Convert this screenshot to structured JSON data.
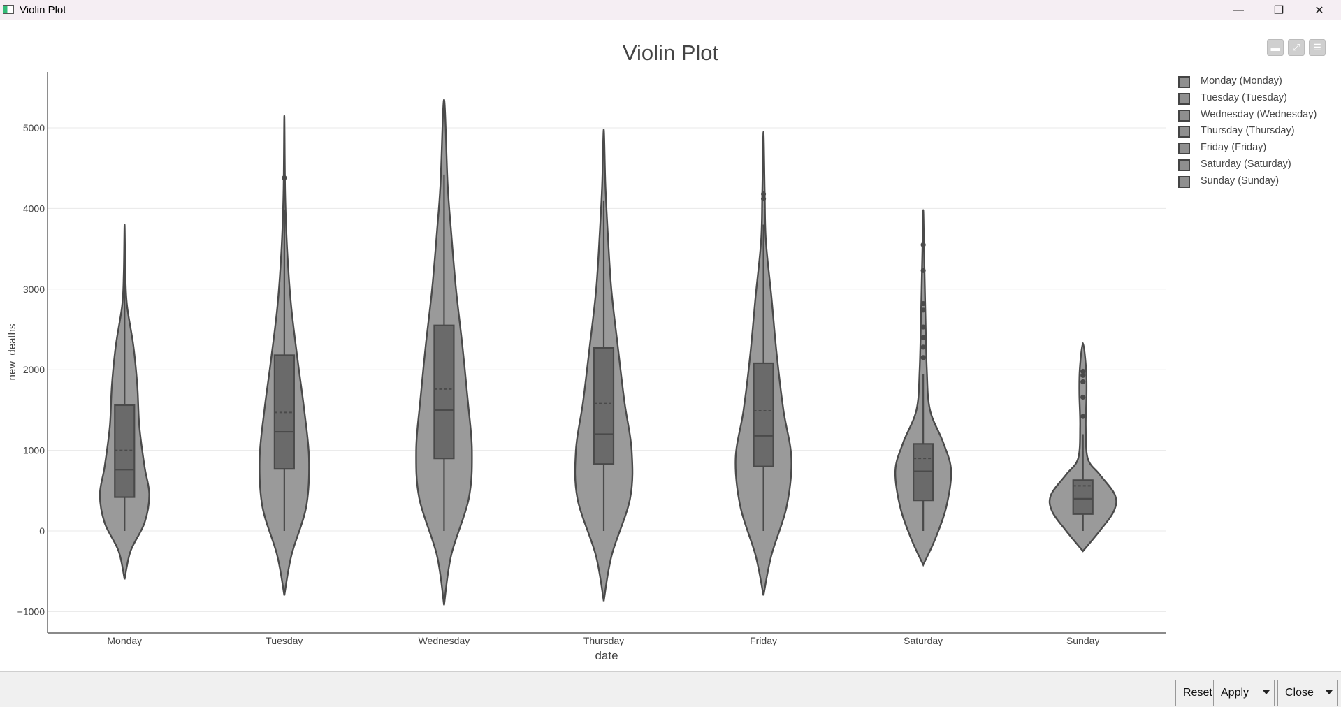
{
  "window": {
    "title": "Violin Plot",
    "icon": "app-chart-icon",
    "controls": [
      "minimize-icon",
      "restore-icon",
      "close-icon"
    ]
  },
  "toolbar": {
    "icons": [
      "collapse-icon",
      "fullscreen-icon",
      "menu-icon"
    ]
  },
  "buttons": {
    "reset": "Reset",
    "apply": "Apply",
    "close": "Close"
  },
  "legend": {
    "items": [
      "Monday (Monday)",
      "Tuesday (Tuesday)",
      "Wednesday (Wednesday)",
      "Thursday (Thursday)",
      "Friday (Friday)",
      "Saturday (Saturday)",
      "Sunday (Sunday)"
    ]
  },
  "colors": {
    "violin_fill": "#9a9a9a",
    "violin_stroke": "#4a4a4a",
    "box_fill": "#6a6a6a",
    "grid": "#e8e8e8"
  },
  "chart_data": {
    "type": "violin",
    "title": "Violin Plot",
    "xlabel": "date",
    "ylabel": "new_deaths",
    "ylim": [
      -1250,
      5700
    ],
    "yticks": [
      -1000,
      0,
      1000,
      2000,
      3000,
      4000,
      5000
    ],
    "ytick_labels": [
      "−1000",
      "0",
      "1000",
      "2000",
      "3000",
      "4000",
      "5000"
    ],
    "grid": true,
    "legend_position": "top-right",
    "categories": [
      "Monday",
      "Tuesday",
      "Wednesday",
      "Thursday",
      "Friday",
      "Saturday",
      "Sunday"
    ],
    "series": [
      {
        "name": "Monday",
        "kde_min": -600,
        "kde_max": 3800,
        "min": 0,
        "q1": 420,
        "median": 760,
        "mean": 1000,
        "q3": 1560,
        "upper_whisker": 3200,
        "outliers": [],
        "density": [
          [
            -600,
            0
          ],
          [
            -250,
            0.15
          ],
          [
            100,
            0.5
          ],
          [
            450,
            0.62
          ],
          [
            800,
            0.5
          ],
          [
            1300,
            0.37
          ],
          [
            1800,
            0.32
          ],
          [
            2300,
            0.22
          ],
          [
            2800,
            0.06
          ],
          [
            3200,
            0.02
          ],
          [
            3800,
            0
          ]
        ]
      },
      {
        "name": "Tuesday",
        "kde_min": -800,
        "kde_max": 5150,
        "min": 0,
        "q1": 770,
        "median": 1230,
        "mean": 1470,
        "q3": 2180,
        "upper_whisker": 3980,
        "outliers": [
          4380
        ],
        "density": [
          [
            -800,
            0
          ],
          [
            -300,
            0.18
          ],
          [
            300,
            0.55
          ],
          [
            900,
            0.62
          ],
          [
            1500,
            0.5
          ],
          [
            2100,
            0.34
          ],
          [
            2800,
            0.17
          ],
          [
            3500,
            0.07
          ],
          [
            4200,
            0.02
          ],
          [
            5150,
            0
          ]
        ]
      },
      {
        "name": "Wednesday",
        "kde_min": -920,
        "kde_max": 5350,
        "min": 0,
        "q1": 900,
        "median": 1500,
        "mean": 1760,
        "q3": 2550,
        "upper_whisker": 4420,
        "outliers": [],
        "density": [
          [
            -920,
            0
          ],
          [
            -300,
            0.18
          ],
          [
            400,
            0.62
          ],
          [
            1000,
            0.7
          ],
          [
            1600,
            0.6
          ],
          [
            2300,
            0.46
          ],
          [
            3000,
            0.3
          ],
          [
            3700,
            0.18
          ],
          [
            4300,
            0.09
          ],
          [
            5350,
            0
          ]
        ]
      },
      {
        "name": "Thursday",
        "kde_min": -870,
        "kde_max": 4980,
        "min": 0,
        "q1": 830,
        "median": 1200,
        "mean": 1580,
        "q3": 2270,
        "upper_whisker": 4100,
        "outliers": [],
        "density": [
          [
            -870,
            0
          ],
          [
            -300,
            0.2
          ],
          [
            400,
            0.66
          ],
          [
            1000,
            0.7
          ],
          [
            1600,
            0.52
          ],
          [
            2300,
            0.35
          ],
          [
            3000,
            0.19
          ],
          [
            3700,
            0.1
          ],
          [
            4300,
            0.04
          ],
          [
            4980,
            0
          ]
        ]
      },
      {
        "name": "Friday",
        "kde_min": -800,
        "kde_max": 4950,
        "min": 0,
        "q1": 800,
        "median": 1180,
        "mean": 1490,
        "q3": 2080,
        "upper_whisker": 3800,
        "outliers": [
          4120,
          4180
        ],
        "density": [
          [
            -800,
            0
          ],
          [
            -300,
            0.2
          ],
          [
            300,
            0.58
          ],
          [
            900,
            0.7
          ],
          [
            1500,
            0.5
          ],
          [
            2200,
            0.33
          ],
          [
            2900,
            0.2
          ],
          [
            3600,
            0.06
          ],
          [
            4200,
            0.03
          ],
          [
            4950,
            0
          ]
        ]
      },
      {
        "name": "Saturday",
        "kde_min": -420,
        "kde_max": 3980,
        "min": 0,
        "q1": 380,
        "median": 740,
        "mean": 900,
        "q3": 1080,
        "upper_whisker": 1950,
        "outliers": [
          2150,
          2280,
          2400,
          2530,
          2740,
          2820,
          3230,
          3550
        ],
        "density": [
          [
            -420,
            0
          ],
          [
            -100,
            0.3
          ],
          [
            300,
            0.58
          ],
          [
            750,
            0.7
          ],
          [
            1100,
            0.5
          ],
          [
            1500,
            0.17
          ],
          [
            2000,
            0.09
          ],
          [
            2800,
            0.05
          ],
          [
            3500,
            0.02
          ],
          [
            3980,
            0
          ]
        ]
      },
      {
        "name": "Sunday",
        "kde_min": -250,
        "kde_max": 2330,
        "min": 0,
        "q1": 210,
        "median": 400,
        "mean": 560,
        "q3": 630,
        "upper_whisker": 1200,
        "outliers": [
          1420,
          1660,
          1850,
          1930,
          1980
        ],
        "density": [
          [
            -250,
            0
          ],
          [
            0,
            0.42
          ],
          [
            250,
            0.78
          ],
          [
            450,
            0.8
          ],
          [
            700,
            0.42
          ],
          [
            900,
            0.12
          ],
          [
            1300,
            0.07
          ],
          [
            1700,
            0.09
          ],
          [
            2000,
            0.08
          ],
          [
            2330,
            0
          ]
        ]
      }
    ]
  }
}
